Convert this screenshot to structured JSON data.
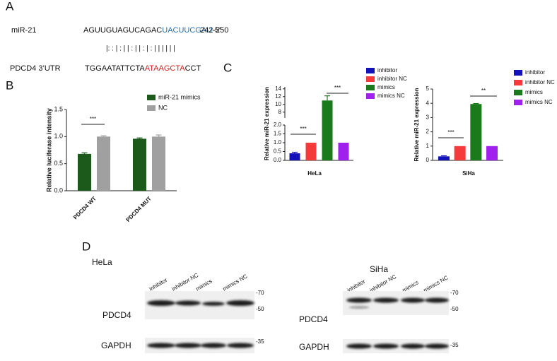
{
  "panel_labels": [
    "A",
    "B",
    "C",
    "D"
  ],
  "panel_a": {
    "mirna_label": "miR-21",
    "mirna_seq": [
      "AGUUGUAGUCAGAC",
      "UACUUCGAU",
      "-5’"
    ],
    "position": "242-250",
    "pairing": "|: : | : | | : | | : | : | | | | | |",
    "target_label": "PDCD4 3’UTR",
    "target_seq": [
      "TGGAATATTCTA",
      "ATAAGCTA",
      "CCT"
    ]
  },
  "chart_data": [
    {
      "type": "bar",
      "ylabel": "Relative luciferase intensity",
      "categories": [
        "PDCD4 WT",
        "PDCD4 MUT"
      ],
      "series": [
        {
          "name": "miR-21 mimics",
          "color": "#1b5a1b",
          "values": [
            0.68,
            0.96
          ],
          "errors": [
            0.02,
            0.015
          ]
        },
        {
          "name": "NC",
          "color": "#a0a0a0",
          "values": [
            1.0,
            1.0
          ],
          "errors": [
            0.015,
            0.03
          ]
        }
      ],
      "ylim": [
        0,
        1.5
      ],
      "yticks": [
        {
          "value": 0,
          "label": "0.0"
        },
        0.5,
        {
          "value": 1,
          "label": "1.0"
        },
        1.5
      ],
      "annotations": [
        "***"
      ]
    },
    {
      "type": "bar",
      "ylabel": "Relative miR-21 expression",
      "xlabel": "HeLa",
      "categories": [
        null
      ],
      "series": [
        {
          "name": "inhibitor",
          "color": "#1212b8",
          "values": [
            0.4
          ],
          "errors": [
            0.06
          ]
        },
        {
          "name": "inhibitor NC",
          "color": "#f43a3a",
          "values": [
            1.0
          ],
          "errors": [
            0
          ]
        },
        {
          "name": "mimics",
          "color": "#1b7a1b",
          "values": [
            11
          ],
          "errors": [
            1.2
          ]
        },
        {
          "name": "mimics NC",
          "color": "#a020ee",
          "values": [
            1.0
          ],
          "errors": [
            0
          ]
        }
      ],
      "ylim": [
        0,
        14.5
      ],
      "ybreak": [
        2,
        6.5
      ],
      "yticks": [
        {
          "value": 0,
          "label": "0.0"
        },
        0.5,
        {
          "value": 1,
          "label": "1.0"
        },
        1.5,
        {
          "value": 2,
          "label": "2.0"
        },
        8,
        10,
        12,
        14
      ],
      "annotations": [
        "***",
        "***"
      ]
    },
    {
      "type": "bar",
      "ylabel": "Relative miR-21 expression",
      "xlabel": "SiHa",
      "categories": [
        null
      ],
      "series": [
        {
          "name": "inhibitor",
          "color": "#1212b8",
          "values": [
            0.28
          ],
          "errors": [
            0.04
          ]
        },
        {
          "name": "inhibitor NC",
          "color": "#f43a3a",
          "values": [
            1.0
          ],
          "errors": [
            0
          ]
        },
        {
          "name": "mimics",
          "color": "#1b7a1b",
          "values": [
            3.95
          ],
          "errors": [
            0.03
          ]
        },
        {
          "name": "mimics NC",
          "color": "#a020ee",
          "values": [
            1.0
          ],
          "errors": [
            0
          ]
        }
      ],
      "ylim": [
        0,
        5
      ],
      "yticks": [
        0,
        1,
        2,
        3,
        4,
        5
      ],
      "annotations": [
        "***",
        "**"
      ]
    }
  ],
  "panel_d": {
    "hela": {
      "cell": "HeLa",
      "lanes": [
        "inhibitor",
        "inhibitor NC",
        "mimics",
        "mimics NC"
      ],
      "protein": "PDCD4",
      "control": "GAPDH",
      "markers": [
        "-70",
        "-50",
        "-35"
      ]
    },
    "siha": {
      "cell": "SiHa",
      "lanes": [
        "inhibitor",
        "inhibitor NC",
        "mimics",
        "mimics NC"
      ],
      "protein": "PDCD4",
      "control": "GAPDH",
      "markers": [
        "-70",
        "-50",
        "-35"
      ]
    }
  }
}
